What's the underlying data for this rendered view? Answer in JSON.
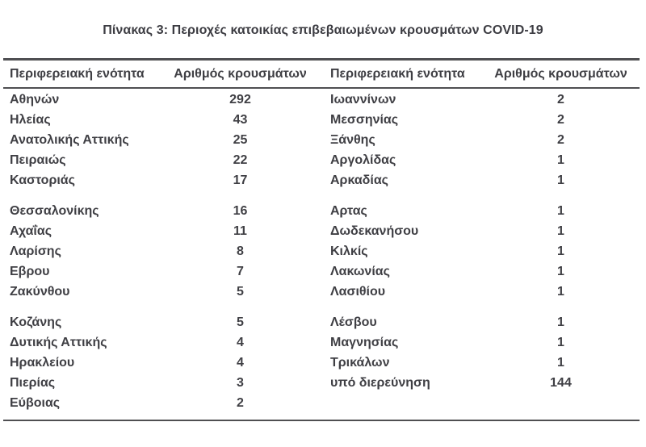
{
  "title": "Πίνακας 3: Περιοχές κατοικίας επιβεβαιωμένων κρουσμάτων COVID-19",
  "table": {
    "headers": {
      "region_left": "Περιφερειακή ενότητα",
      "cases_left": "Αριθμός κρουσμάτων",
      "region_right": "Περιφερειακή ενότητα",
      "cases_right": "Αριθμός κρουσμάτων"
    },
    "groups": [
      {
        "rows": [
          {
            "left_region": "Αθηνών",
            "left_cases": "292",
            "right_region": "Ιωαννίνων",
            "right_cases": "2"
          },
          {
            "left_region": "Ηλείας",
            "left_cases": "43",
            "right_region": "Μεσσηνίας",
            "right_cases": "2"
          },
          {
            "left_region": "Ανατολικής Αττικής",
            "left_cases": "25",
            "right_region": "Ξάνθης",
            "right_cases": "2"
          },
          {
            "left_region": "Πειραιώς",
            "left_cases": "22",
            "right_region": "Αργολίδας",
            "right_cases": "1"
          },
          {
            "left_region": "Καστοριάς",
            "left_cases": "17",
            "right_region": "Αρκαδίας",
            "right_cases": "1"
          }
        ]
      },
      {
        "rows": [
          {
            "left_region": "Θεσσαλονίκης",
            "left_cases": "16",
            "right_region": "Αρτας",
            "right_cases": "1"
          },
          {
            "left_region": "Αχαΐας",
            "left_cases": "11",
            "right_region": "Δωδεκανήσου",
            "right_cases": "1"
          },
          {
            "left_region": "Λαρίσης",
            "left_cases": "8",
            "right_region": "Κιλκίς",
            "right_cases": "1"
          },
          {
            "left_region": "Εβρου",
            "left_cases": "7",
            "right_region": "Λακωνίας",
            "right_cases": "1"
          },
          {
            "left_region": "Ζακύνθου",
            "left_cases": "5",
            "right_region": "Λασιθίου",
            "right_cases": "1"
          }
        ]
      },
      {
        "rows": [
          {
            "left_region": "Κοζάνης",
            "left_cases": "5",
            "right_region": "Λέσβου",
            "right_cases": "1"
          },
          {
            "left_region": "Δυτικής Αττικής",
            "left_cases": "4",
            "right_region": "Μαγνησίας",
            "right_cases": "1"
          },
          {
            "left_region": "Ηρακλείου",
            "left_cases": "4",
            "right_region": "Τρικάλων",
            "right_cases": "1"
          },
          {
            "left_region": "Πιερίας",
            "left_cases": "3",
            "right_region": "υπό διερεύνηση",
            "right_cases": "144"
          },
          {
            "left_region": "Εύβοιας",
            "left_cases": "2",
            "right_region": "",
            "right_cases": ""
          }
        ]
      }
    ]
  },
  "colors": {
    "background": "#ffffff",
    "text": "#3f3f44",
    "rule": "#4f4f52"
  }
}
